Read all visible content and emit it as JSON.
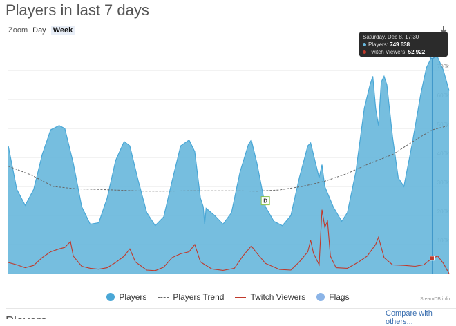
{
  "title": "Players in last 7 days",
  "zoom": {
    "label": "Zoom",
    "options": [
      "Day",
      "Week"
    ],
    "active": "Week"
  },
  "tooltip": {
    "date": "Saturday, Dec 8, 17:30",
    "players_label": "Players:",
    "players_value": "749 638",
    "twitch_label": "Twitch Viewers:",
    "twitch_value": "52 922"
  },
  "legend": {
    "players": "Players",
    "trend": "Players Trend",
    "twitch": "Twitch Viewers",
    "flags": "Flags"
  },
  "credits": "SteamDB.info",
  "compare_link": "Compare with others...",
  "next_title": "Players ... ",
  "colors": {
    "players": "#67b7dc",
    "players_line": "#4aa7d6",
    "trend": "#666666",
    "twitch": "#c0392b",
    "flags": "#8bb4e7"
  },
  "chart_data": {
    "type": "area",
    "ylim": [
      0,
      800000
    ],
    "yticks": [
      0,
      100000,
      200000,
      300000,
      400000,
      500000,
      600000,
      700000
    ],
    "ytick_labels": [
      "0",
      "100k",
      "200k",
      "300k",
      "400k",
      "500k",
      "600k",
      "700k"
    ],
    "x_index_count": 161,
    "flag": {
      "label": "D",
      "x": 91,
      "y": 270000
    },
    "series": [
      {
        "name": "Players",
        "type": "area",
        "points": [
          [
            0,
            440000
          ],
          [
            3,
            290000
          ],
          [
            6,
            235000
          ],
          [
            9,
            290000
          ],
          [
            12,
            410000
          ],
          [
            15,
            495000
          ],
          [
            18,
            510000
          ],
          [
            20,
            500000
          ],
          [
            23,
            380000
          ],
          [
            26,
            230000
          ],
          [
            29,
            170000
          ],
          [
            32,
            175000
          ],
          [
            35,
            260000
          ],
          [
            38,
            390000
          ],
          [
            41,
            455000
          ],
          [
            43,
            440000
          ],
          [
            46,
            320000
          ],
          [
            49,
            210000
          ],
          [
            52,
            165000
          ],
          [
            55,
            195000
          ],
          [
            58,
            320000
          ],
          [
            61,
            440000
          ],
          [
            64,
            460000
          ],
          [
            66,
            420000
          ],
          [
            68,
            260000
          ],
          [
            69,
            230000
          ],
          [
            69.5,
            170000
          ],
          [
            70,
            225000
          ],
          [
            73,
            200000
          ],
          [
            76,
            170000
          ],
          [
            79,
            210000
          ],
          [
            82,
            350000
          ],
          [
            85,
            445000
          ],
          [
            86,
            460000
          ],
          [
            88,
            380000
          ],
          [
            91,
            230000
          ],
          [
            94,
            180000
          ],
          [
            97,
            165000
          ],
          [
            100,
            200000
          ],
          [
            103,
            330000
          ],
          [
            106,
            440000
          ],
          [
            107,
            450000
          ],
          [
            109,
            370000
          ],
          [
            110,
            330000
          ],
          [
            111,
            375000
          ],
          [
            112,
            300000
          ],
          [
            115,
            230000
          ],
          [
            118,
            180000
          ],
          [
            120,
            210000
          ],
          [
            123,
            350000
          ],
          [
            126,
            570000
          ],
          [
            128,
            650000
          ],
          [
            129,
            680000
          ],
          [
            130,
            570000
          ],
          [
            131,
            510000
          ],
          [
            132,
            660000
          ],
          [
            133,
            680000
          ],
          [
            134,
            650000
          ],
          [
            136,
            470000
          ],
          [
            138,
            330000
          ],
          [
            140,
            300000
          ],
          [
            143,
            450000
          ],
          [
            146,
            620000
          ],
          [
            148,
            710000
          ],
          [
            150,
            749638
          ],
          [
            152,
            745000
          ],
          [
            154,
            700000
          ],
          [
            156,
            630000
          ]
        ]
      },
      {
        "name": "Players Trend",
        "type": "dashed-line",
        "points": [
          [
            0,
            370000
          ],
          [
            8,
            340000
          ],
          [
            16,
            300000
          ],
          [
            24,
            292000
          ],
          [
            32,
            290000
          ],
          [
            40,
            287000
          ],
          [
            48,
            284000
          ],
          [
            56,
            284000
          ],
          [
            64,
            285000
          ],
          [
            72,
            285000
          ],
          [
            80,
            285000
          ],
          [
            88,
            284000
          ],
          [
            96,
            288000
          ],
          [
            104,
            300000
          ],
          [
            112,
            318000
          ],
          [
            120,
            345000
          ],
          [
            128,
            380000
          ],
          [
            136,
            410000
          ],
          [
            144,
            460000
          ],
          [
            150,
            495000
          ],
          [
            156,
            510000
          ]
        ]
      },
      {
        "name": "Twitch Viewers",
        "type": "line",
        "points": [
          [
            0,
            38000
          ],
          [
            3,
            30000
          ],
          [
            6,
            20000
          ],
          [
            9,
            28000
          ],
          [
            12,
            55000
          ],
          [
            15,
            75000
          ],
          [
            18,
            85000
          ],
          [
            20,
            90000
          ],
          [
            22,
            110000
          ],
          [
            23,
            60000
          ],
          [
            26,
            25000
          ],
          [
            29,
            18000
          ],
          [
            32,
            15000
          ],
          [
            35,
            20000
          ],
          [
            38,
            38000
          ],
          [
            41,
            60000
          ],
          [
            43,
            85000
          ],
          [
            45,
            40000
          ],
          [
            49,
            12000
          ],
          [
            52,
            10000
          ],
          [
            55,
            22000
          ],
          [
            58,
            55000
          ],
          [
            61,
            68000
          ],
          [
            64,
            75000
          ],
          [
            66,
            100000
          ],
          [
            68,
            40000
          ],
          [
            72,
            16000
          ],
          [
            76,
            11000
          ],
          [
            80,
            18000
          ],
          [
            83,
            60000
          ],
          [
            86,
            95000
          ],
          [
            88,
            70000
          ],
          [
            91,
            35000
          ],
          [
            96,
            14000
          ],
          [
            100,
            12000
          ],
          [
            103,
            40000
          ],
          [
            106,
            75000
          ],
          [
            107,
            115000
          ],
          [
            108,
            70000
          ],
          [
            110,
            30000
          ],
          [
            111,
            220000
          ],
          [
            112,
            160000
          ],
          [
            113,
            180000
          ],
          [
            114,
            60000
          ],
          [
            116,
            20000
          ],
          [
            120,
            18000
          ],
          [
            124,
            40000
          ],
          [
            127,
            60000
          ],
          [
            130,
            100000
          ],
          [
            131,
            125000
          ],
          [
            133,
            55000
          ],
          [
            136,
            30000
          ],
          [
            140,
            28000
          ],
          [
            144,
            25000
          ],
          [
            147,
            30000
          ],
          [
            150,
            52922
          ],
          [
            152,
            60000
          ],
          [
            154,
            35000
          ],
          [
            156,
            0
          ]
        ]
      }
    ]
  }
}
